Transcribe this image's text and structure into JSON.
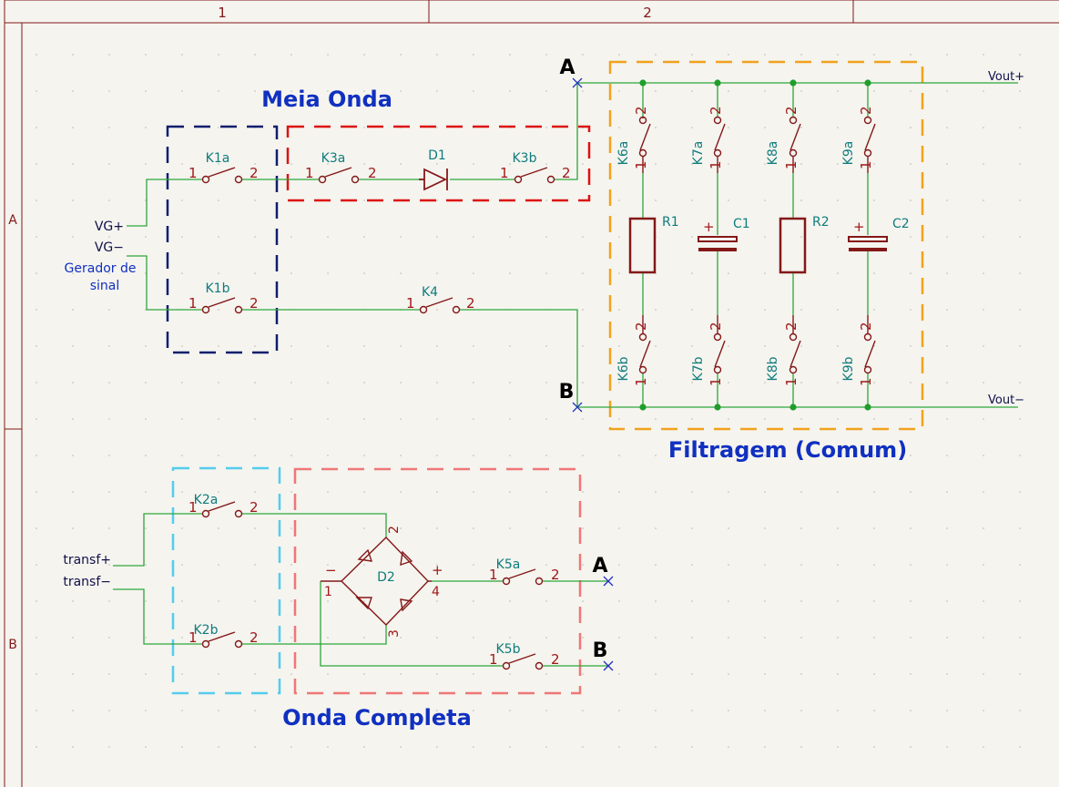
{
  "frame": {
    "col_labels": [
      "1",
      "2"
    ],
    "row_labels": [
      "A",
      "B"
    ]
  },
  "groups": {
    "meia_onda": "Meia Onda",
    "filtragem": "Filtragem (Comum)",
    "onda_completa": "Onda Completa"
  },
  "ports": {
    "a_top": "A",
    "b_top": "B",
    "a_bottom": "A",
    "b_bottom": "B"
  },
  "labels": {
    "vg_plus": "VG+",
    "vg_minus": "VG−",
    "gerador_line1": "Gerador de",
    "gerador_line2": "sinal",
    "transf_plus": "transf+",
    "transf_minus": "transf−",
    "vout_plus": "Vout+",
    "vout_minus": "Vout−"
  },
  "components": {
    "k1a": "K1a",
    "k1b": "K1b",
    "k3a": "K3a",
    "k3b": "K3b",
    "k4": "K4",
    "d1": "D1",
    "d2": "D2",
    "k6a": "K6a",
    "k6b": "K6b",
    "k7a": "K7a",
    "k7b": "K7b",
    "k8a": "K8a",
    "k8b": "K8b",
    "k9a": "K9a",
    "k9b": "K9b",
    "r1": "R1",
    "r2": "R2",
    "c1": "C1",
    "c2": "C2",
    "k2a": "K2a",
    "k2b": "K2b",
    "k5a": "K5a",
    "k5b": "K5b"
  },
  "pins": {
    "one": "1",
    "two": "2",
    "three": "3",
    "four": "4",
    "plus": "+",
    "minus": "−"
  },
  "colors": {
    "paper": "#f5f4ef",
    "frame": "#841818",
    "wire": "#2fa63a",
    "junction": "#1e9e2a",
    "component": "#841818",
    "ref_text": "#0f7c7c",
    "pin_text": "#a01818",
    "net_label": "#101048",
    "title_blue": "#1030c0",
    "meia_onda_box": "#0e1e6e",
    "meia_onda_red": "#dd1111",
    "filtragem_box": "#f2a11f",
    "onda_completa_cyan": "#55ccee",
    "onda_completa_box": "#ee7777"
  }
}
